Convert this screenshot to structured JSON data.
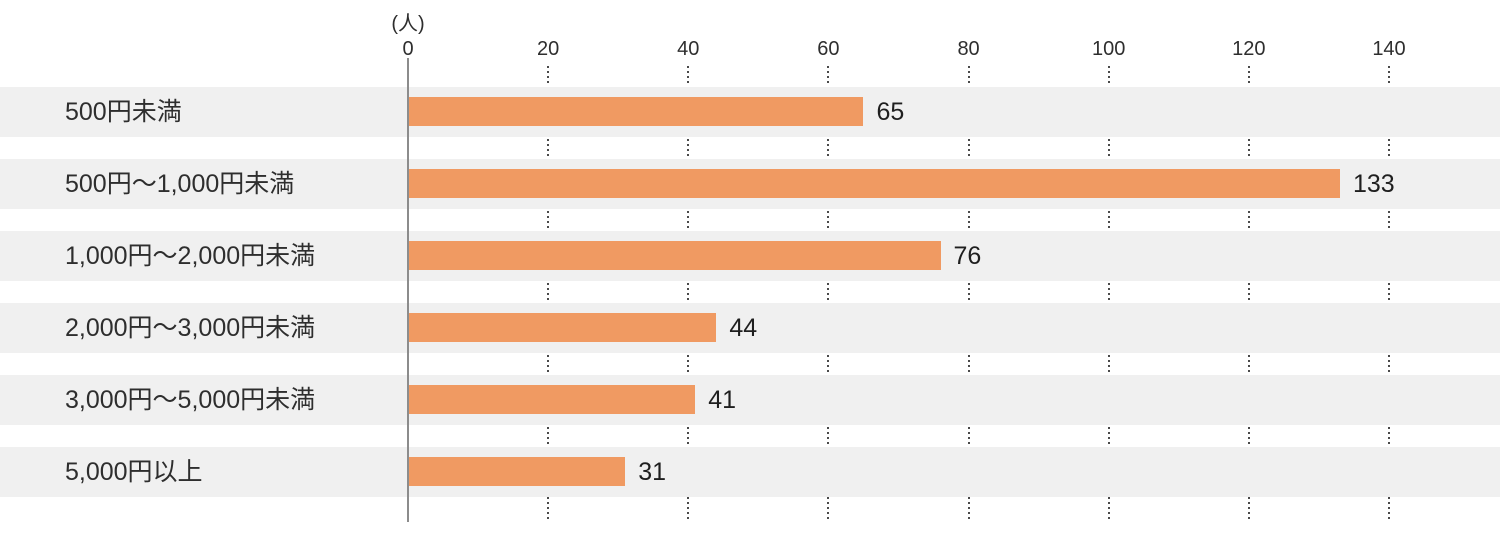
{
  "chart_data": {
    "type": "bar",
    "orientation": "horizontal",
    "title": "",
    "unit_label": "(人)",
    "categories": [
      "500円未満",
      "500円～1,000円未満",
      "1,000円～2,000円未満",
      "2,000円～3,000円未満",
      "3,000円～5,000円未満",
      "5,000円以上"
    ],
    "values": [
      65,
      133,
      76,
      44,
      41,
      31
    ],
    "value_labels_shown": true,
    "xlim": [
      0,
      140
    ],
    "x_ticks": [
      0,
      20,
      40,
      60,
      80,
      100,
      120,
      140
    ],
    "grid": "dotted vertical segments between row bands",
    "legend": "none",
    "colors": {
      "bar": "#F09A62",
      "row_band": "#F0F0F0",
      "axis_line": "#8C8C8C",
      "grid_dots": "#4A4A4A",
      "text": "#2E2E2E"
    }
  }
}
